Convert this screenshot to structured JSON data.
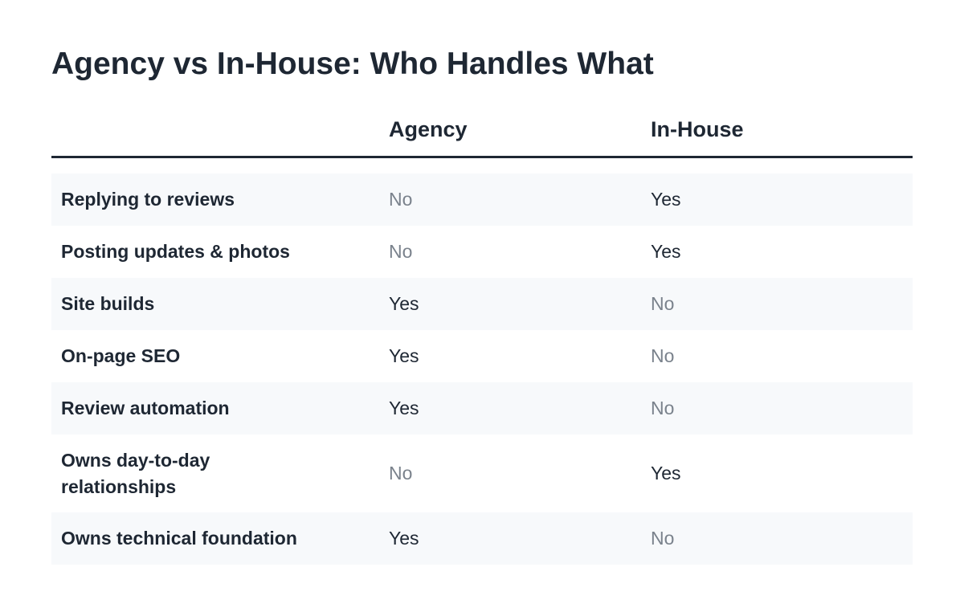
{
  "title": "Agency vs In-House: Who Handles What",
  "columns": {
    "agency": "Agency",
    "inhouse": "In-House"
  },
  "rows": [
    {
      "task": "Replying to reviews",
      "agency": "No",
      "inhouse": "Yes"
    },
    {
      "task": "Posting updates & photos",
      "agency": "No",
      "inhouse": "Yes"
    },
    {
      "task": "Site builds",
      "agency": "Yes",
      "inhouse": "No"
    },
    {
      "task": "On-page SEO",
      "agency": "Yes",
      "inhouse": "No"
    },
    {
      "task": "Review automation",
      "agency": "Yes",
      "inhouse": "No"
    },
    {
      "task": "Owns day-to-day relationships",
      "agency": "No",
      "inhouse": "Yes"
    },
    {
      "task": "Owns technical foundation",
      "agency": "Yes",
      "inhouse": "No"
    }
  ],
  "colors": {
    "text": "#1e2733",
    "muted_no": "#7a828c",
    "row_shade": "#f7f9fb"
  }
}
